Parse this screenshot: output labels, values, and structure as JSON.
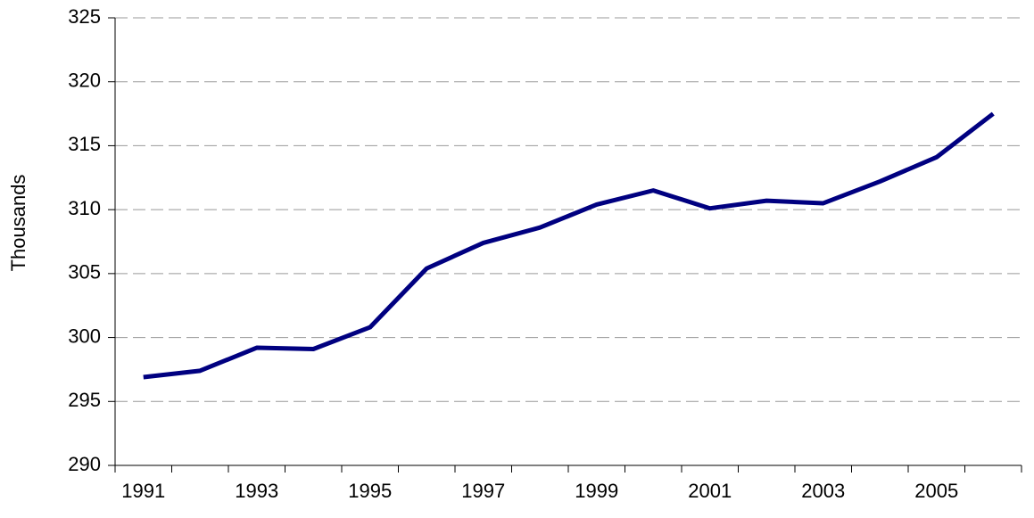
{
  "chart_data": {
    "type": "line",
    "y_label": "Thousands",
    "categories": [
      "1991",
      null,
      "1993",
      null,
      "1995",
      null,
      "1997",
      null,
      "1999",
      null,
      "2001",
      null,
      "2003",
      null,
      "2005",
      null
    ],
    "series": [
      {
        "color": "#000080",
        "values": [
          296.9,
          297.4,
          299.2,
          299.1,
          300.8,
          305.4,
          307.4,
          308.6,
          310.4,
          311.5,
          310.1,
          310.7,
          310.5,
          312.2,
          314.1,
          317.5
        ]
      }
    ],
    "ylim": [
      290,
      325
    ],
    "yticks": [
      290,
      295,
      300,
      305,
      310,
      315,
      320,
      325
    ],
    "grid": true
  }
}
